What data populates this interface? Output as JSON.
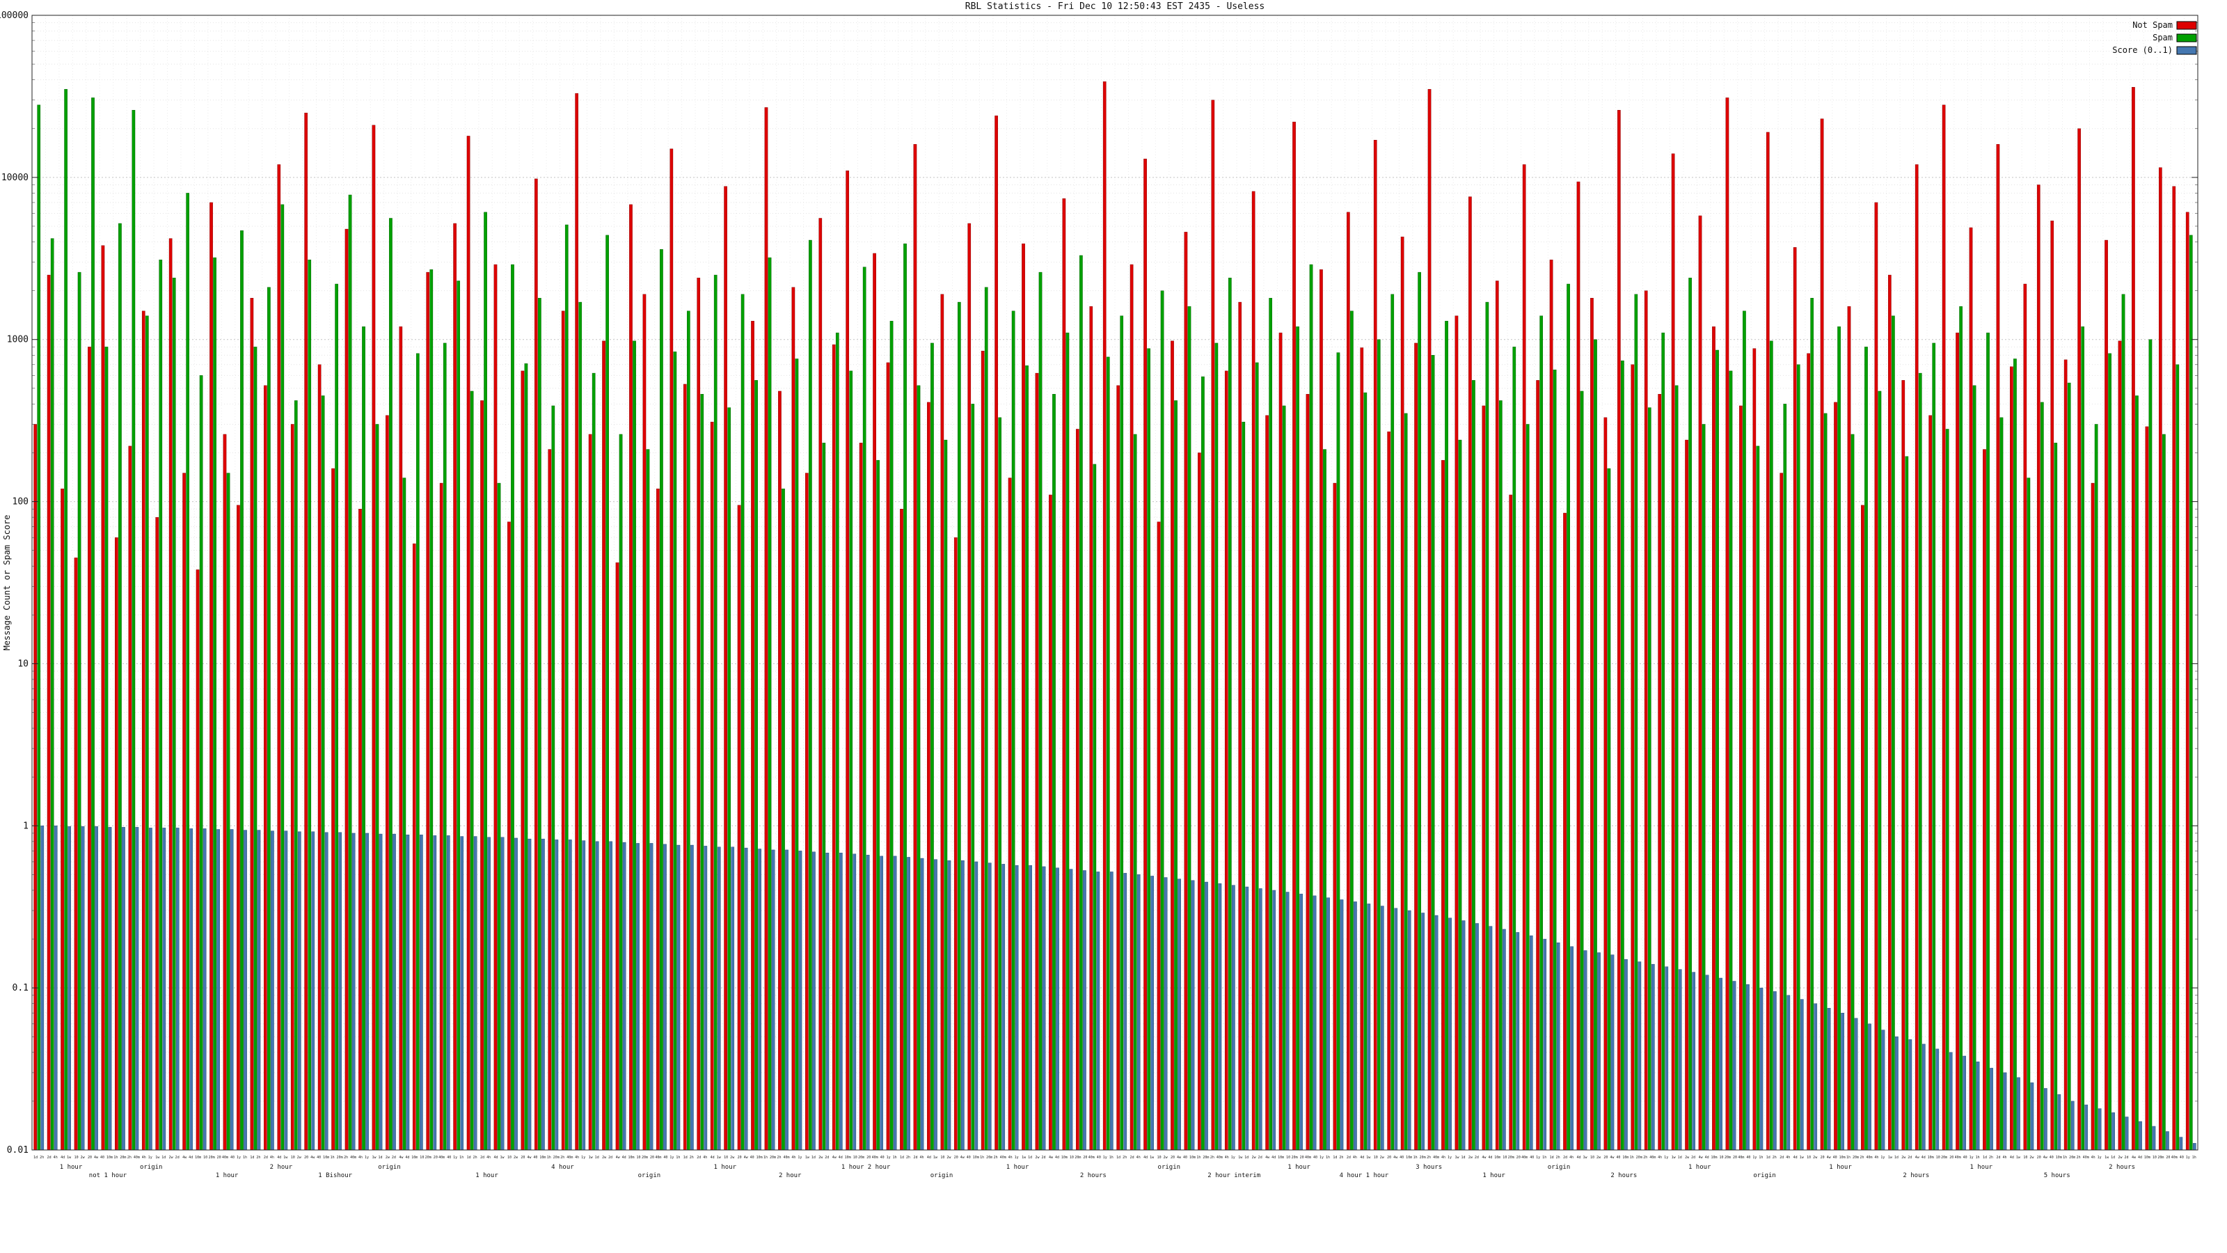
{
  "chart_data": {
    "type": "bar",
    "title": "RBL Statistics - Fri Dec 10 12:50:43 EST 2435 - Useless",
    "ylabel": "Message Count or Spam Score",
    "y_scale": "log",
    "ylim": [
      0.01,
      100000
    ],
    "y_tick_labels": [
      "100000",
      "10000",
      "1000",
      "100",
      "10",
      "1",
      "0.1",
      "0.01"
    ],
    "y_tick_values": [
      100000,
      10000,
      1000,
      100,
      10,
      1,
      0.1,
      0.01
    ],
    "grid": "dotted",
    "legend_position": "top-right",
    "legend": [
      {
        "label": "Not Spam",
        "color": "#dd0000"
      },
      {
        "label": "Spam",
        "color": "#00a000"
      },
      {
        "label": "Score (0..1)",
        "color": "#4577b0"
      }
    ],
    "x_axis_note": "per-bar RBL tick labels and group labels are largely illegible in the source image; approximated",
    "x_tick_cycle": [
      "1d",
      "2d",
      "4d",
      "10",
      "20",
      "40",
      "1h",
      "2h",
      "4h",
      "1w",
      "2w",
      "4w",
      "10m",
      "20m",
      "40m",
      "1y"
    ],
    "x_group_labels": [
      {
        "pos": 0.018,
        "text": "1 hour"
      },
      {
        "pos": 0.035,
        "text": "not 1 hour"
      },
      {
        "pos": 0.055,
        "text": "origin"
      },
      {
        "pos": 0.09,
        "text": "1 hour"
      },
      {
        "pos": 0.115,
        "text": "2 hour"
      },
      {
        "pos": 0.14,
        "text": "1 Bishour"
      },
      {
        "pos": 0.165,
        "text": "origin"
      },
      {
        "pos": 0.21,
        "text": "1 hour"
      },
      {
        "pos": 0.245,
        "text": "4 hour"
      },
      {
        "pos": 0.285,
        "text": "origin"
      },
      {
        "pos": 0.32,
        "text": "1 hour"
      },
      {
        "pos": 0.35,
        "text": "2 hour"
      },
      {
        "pos": 0.385,
        "text": "1 hour 2 hour"
      },
      {
        "pos": 0.42,
        "text": "origin"
      },
      {
        "pos": 0.455,
        "text": "1 hour"
      },
      {
        "pos": 0.49,
        "text": "2 hours"
      },
      {
        "pos": 0.525,
        "text": "origin"
      },
      {
        "pos": 0.555,
        "text": "2 hour interim"
      },
      {
        "pos": 0.585,
        "text": "1 hour"
      },
      {
        "pos": 0.615,
        "text": "4 hour 1 hour"
      },
      {
        "pos": 0.645,
        "text": "3 hours"
      },
      {
        "pos": 0.675,
        "text": "1 hour"
      },
      {
        "pos": 0.705,
        "text": "origin"
      },
      {
        "pos": 0.735,
        "text": "2 hours"
      },
      {
        "pos": 0.77,
        "text": "1 hour"
      },
      {
        "pos": 0.8,
        "text": "origin"
      },
      {
        "pos": 0.835,
        "text": "1 hour"
      },
      {
        "pos": 0.87,
        "text": "2 hours"
      },
      {
        "pos": 0.9,
        "text": "1 hour"
      },
      {
        "pos": 0.935,
        "text": "5 hours"
      },
      {
        "pos": 0.965,
        "text": "2 hours"
      }
    ],
    "series": [
      {
        "name": "Not Spam",
        "color": "#dd0000",
        "edge": "#7a0000",
        "values": [
          300,
          2500,
          120,
          45,
          900,
          3800,
          60,
          220,
          1500,
          80,
          4200,
          150,
          38,
          7000,
          260,
          95,
          1800,
          520,
          12000,
          300,
          25000,
          700,
          160,
          4800,
          90,
          21000,
          340,
          1200,
          55,
          2600,
          130,
          5200,
          18000,
          420,
          2900,
          75,
          640,
          9800,
          210,
          1500,
          33000,
          260,
          980,
          42,
          6800,
          1900,
          120,
          15000,
          530,
          2400,
          310,
          8800,
          95,
          1300,
          27000,
          480,
          2100,
          150,
          5600,
          930,
          11000,
          230,
          3400,
          720,
          90,
          16000,
          410,
          1900,
          60,
          5200,
          850,
          24000,
          140,
          3900,
          620,
          110,
          7400,
          280,
          1600,
          39000,
          520,
          2900,
          13000,
          75,
          980,
          4600,
          200,
          30000,
          640,
          1700,
          8200,
          340,
          1100,
          22000,
          460,
          2700,
          130,
          6100,
          890,
          17000,
          270,
          4300,
          950,
          35000,
          180,
          1400,
          7600,
          390,
          2300,
          110,
          12000,
          560,
          3100,
          85,
          9400,
          1800,
          330,
          26000,
          700,
          2000,
          460,
          14000,
          240,
          5800,
          1200,
          31000,
          390,
          880,
          19000,
          150,
          3700,
          820,
          23000,
          410,
          1600,
          95,
          7000,
          2500,
          560,
          12000,
          340,
          28000,
          1100,
          4900,
          210,
          16000,
          680,
          2200,
          9000,
          5400,
          750,
          20000,
          130,
          4100,
          980,
          36000,
          290,
          11500,
          8800,
          6100
        ]
      },
      {
        "name": "Spam",
        "color": "#00a000",
        "edge": "#005500",
        "values": [
          28000,
          4200,
          35000,
          2600,
          31000,
          900,
          5200,
          26000,
          1400,
          3100,
          2400,
          8000,
          600,
          3200,
          150,
          4700,
          900,
          2100,
          6800,
          420,
          3100,
          450,
          2200,
          7800,
          1200,
          300,
          5600,
          140,
          820,
          2700,
          950,
          2300,
          480,
          6100,
          130,
          2900,
          710,
          1800,
          390,
          5100,
          1700,
          620,
          4400,
          260,
          980,
          210,
          3600,
          840,
          1500,
          460,
          2500,
          380,
          1900,
          560,
          3200,
          120,
          760,
          4100,
          230,
          1100,
          640,
          2800,
          180,
          1300,
          3900,
          520,
          950,
          240,
          1700,
          400,
          2100,
          330,
          1500,
          690,
          2600,
          460,
          1100,
          3300,
          170,
          780,
          1400,
          260,
          880,
          2000,
          420,
          1600,
          590,
          950,
          2400,
          310,
          720,
          1800,
          390,
          1200,
          2900,
          210,
          830,
          1500,
          470,
          1000,
          1900,
          350,
          2600,
          800,
          1300,
          240,
          560,
          1700,
          420,
          900,
          300,
          1400,
          650,
          2200,
          480,
          1000,
          160,
          740,
          1900,
          380,
          1100,
          520,
          2400,
          300,
          860,
          640,
          1500,
          220,
          980,
          400,
          700,
          1800,
          350,
          1200,
          260,
          900,
          480,
          1400,
          190,
          620,
          950,
          280,
          1600,
          520,
          1100,
          330,
          760,
          140,
          410,
          230,
          540,
          1200,
          300,
          820,
          1900,
          450,
          1000,
          260,
          700,
          4400
        ]
      },
      {
        "name": "Score (0..1)",
        "color": "#4577b0",
        "edge": "#1f3f66",
        "values": [
          1.0,
          1.0,
          0.99,
          0.99,
          0.99,
          0.98,
          0.98,
          0.98,
          0.97,
          0.97,
          0.97,
          0.96,
          0.96,
          0.95,
          0.95,
          0.94,
          0.94,
          0.93,
          0.93,
          0.92,
          0.92,
          0.91,
          0.91,
          0.9,
          0.9,
          0.89,
          0.89,
          0.88,
          0.88,
          0.87,
          0.87,
          0.86,
          0.86,
          0.85,
          0.85,
          0.84,
          0.83,
          0.83,
          0.82,
          0.82,
          0.81,
          0.8,
          0.8,
          0.79,
          0.78,
          0.78,
          0.77,
          0.76,
          0.76,
          0.75,
          0.74,
          0.74,
          0.73,
          0.72,
          0.71,
          0.71,
          0.7,
          0.69,
          0.68,
          0.68,
          0.67,
          0.66,
          0.65,
          0.65,
          0.64,
          0.63,
          0.62,
          0.61,
          0.61,
          0.6,
          0.59,
          0.58,
          0.57,
          0.57,
          0.56,
          0.55,
          0.54,
          0.53,
          0.52,
          0.52,
          0.51,
          0.5,
          0.49,
          0.48,
          0.47,
          0.46,
          0.45,
          0.44,
          0.43,
          0.42,
          0.41,
          0.4,
          0.39,
          0.38,
          0.37,
          0.36,
          0.35,
          0.34,
          0.33,
          0.32,
          0.31,
          0.3,
          0.29,
          0.28,
          0.27,
          0.26,
          0.25,
          0.24,
          0.23,
          0.22,
          0.21,
          0.2,
          0.19,
          0.18,
          0.17,
          0.165,
          0.16,
          0.15,
          0.145,
          0.14,
          0.135,
          0.13,
          0.125,
          0.12,
          0.115,
          0.11,
          0.105,
          0.1,
          0.095,
          0.09,
          0.085,
          0.08,
          0.075,
          0.07,
          0.065,
          0.06,
          0.055,
          0.05,
          0.048,
          0.045,
          0.042,
          0.04,
          0.038,
          0.035,
          0.032,
          0.03,
          0.028,
          0.026,
          0.024,
          0.022,
          0.02,
          0.019,
          0.018,
          0.017,
          0.016,
          0.015,
          0.014,
          0.013,
          0.012,
          0.011
        ]
      }
    ]
  }
}
